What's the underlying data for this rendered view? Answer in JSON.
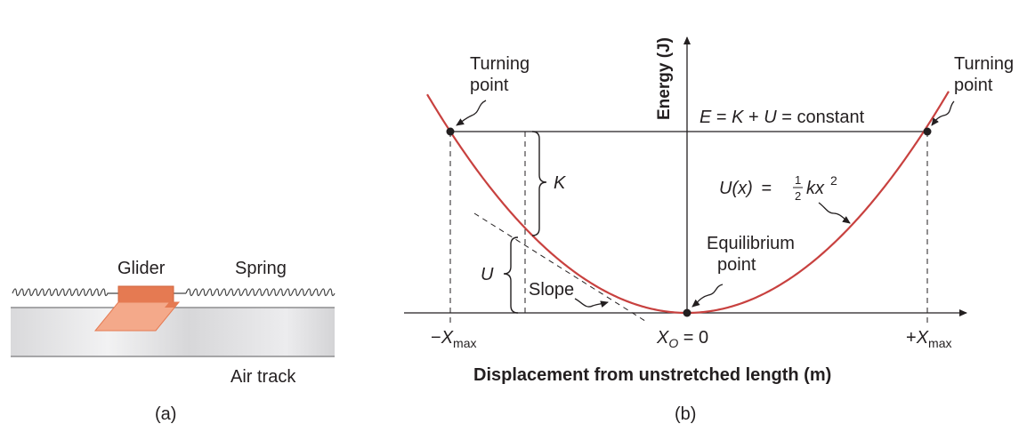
{
  "panel_a": {
    "glider_label": "Glider",
    "spring_label": "Spring",
    "track_label": "Air track",
    "caption": "(a)"
  },
  "panel_b": {
    "y_axis_label": "Energy (J)",
    "x_axis_label": "Displacement from unstretched length (m)",
    "turning_point_left": [
      "Turning",
      "point"
    ],
    "turning_point_right": [
      "Turning",
      "point"
    ],
    "energy_eq": {
      "E": "E",
      "eq1": " = ",
      "K": "K",
      "plus": " + ",
      "U": "U",
      "rest": " = constant"
    },
    "k_label": "K",
    "u_label": "U",
    "slope_label": "Slope",
    "equilibrium_label": [
      "Equilibrium",
      "point"
    ],
    "potential_eq": {
      "lhs": "U(x)",
      "eq": " = ",
      "num": "1",
      "den": "2",
      "k": "kx",
      "exp": "2"
    },
    "tick_left": {
      "sign": "−",
      "x": "X",
      "sub": "max"
    },
    "tick_center": {
      "x": "X",
      "sub": "O",
      "rest": " = 0"
    },
    "tick_right": {
      "sign": "+",
      "x": "X",
      "sub": "max"
    },
    "caption": "(b)",
    "curve_color": "#c8413f",
    "line_color": "#231f20"
  }
}
